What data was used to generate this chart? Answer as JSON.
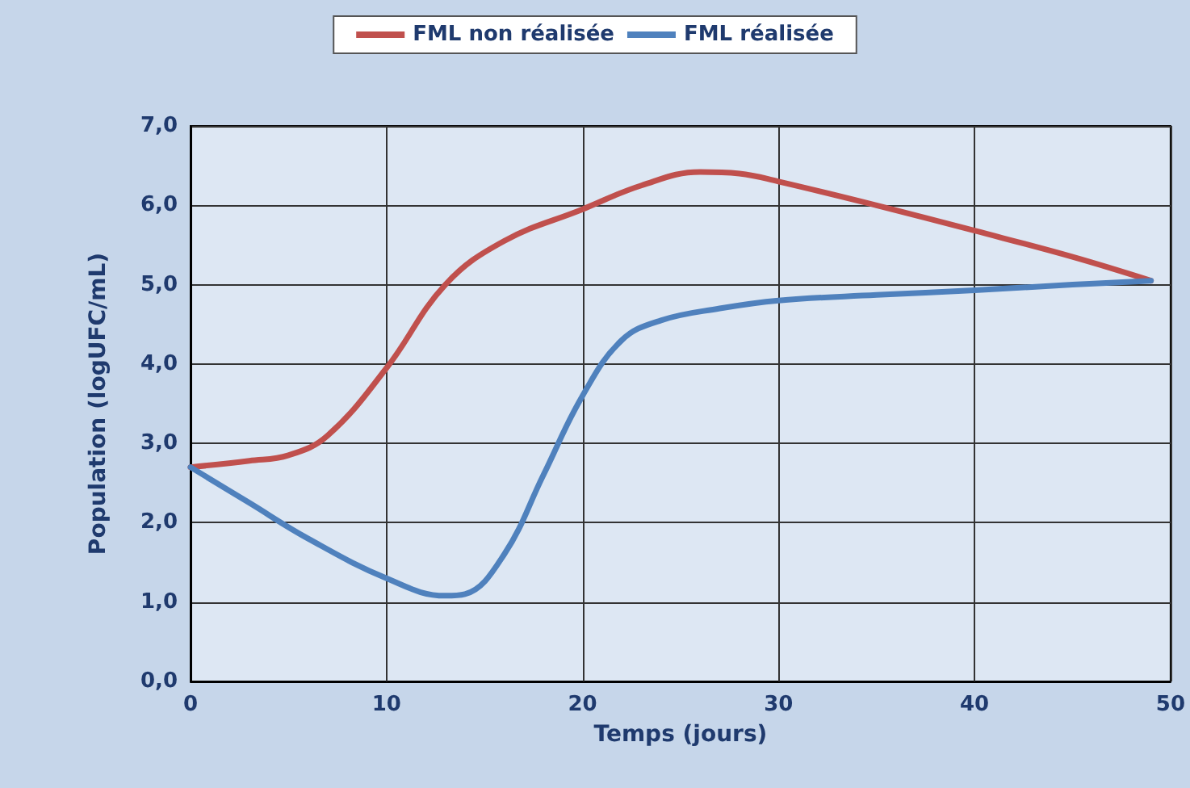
{
  "chart_data": {
    "type": "line",
    "xlabel": "Temps (jours)",
    "ylabel": "Population (logUFC/mL)",
    "xlim": [
      0,
      50
    ],
    "xticks": [
      0,
      10,
      20,
      30,
      40,
      50
    ],
    "ylim": [
      0,
      7
    ],
    "yticks": [
      {
        "value": 0,
        "label": "0,0"
      },
      {
        "value": 1,
        "label": "1,0"
      },
      {
        "value": 2,
        "label": "2,0"
      },
      {
        "value": 3,
        "label": "3,0"
      },
      {
        "value": 4,
        "label": "4,0"
      },
      {
        "value": 5,
        "label": "5,0"
      },
      {
        "value": 6,
        "label": "6,0"
      },
      {
        "value": 7,
        "label": "7,0"
      }
    ],
    "grid": true,
    "legend": "top",
    "marker": "none",
    "line_style": "solid",
    "series": [
      {
        "name": "FML non réalisée",
        "color": "#c0504d",
        "x": [
          0,
          3,
          5,
          7,
          10,
          13,
          16,
          20,
          23,
          26,
          28,
          30,
          35,
          40,
          45,
          49
        ],
        "values": [
          2.7,
          2.78,
          2.85,
          3.1,
          3.95,
          5.0,
          5.55,
          5.95,
          6.25,
          6.42,
          6.4,
          6.3,
          6.0,
          5.68,
          5.35,
          5.05
        ]
      },
      {
        "name": "FML réalisée",
        "color": "#4f81bd",
        "x": [
          0,
          3,
          6,
          10,
          13,
          14,
          16,
          18,
          20,
          22,
          24,
          27,
          30,
          35,
          40,
          45,
          49
        ],
        "values": [
          2.7,
          2.25,
          1.8,
          1.3,
          1.08,
          1.1,
          1.6,
          2.6,
          3.6,
          4.3,
          4.55,
          4.7,
          4.8,
          4.87,
          4.93,
          5.0,
          5.05
        ]
      }
    ]
  }
}
